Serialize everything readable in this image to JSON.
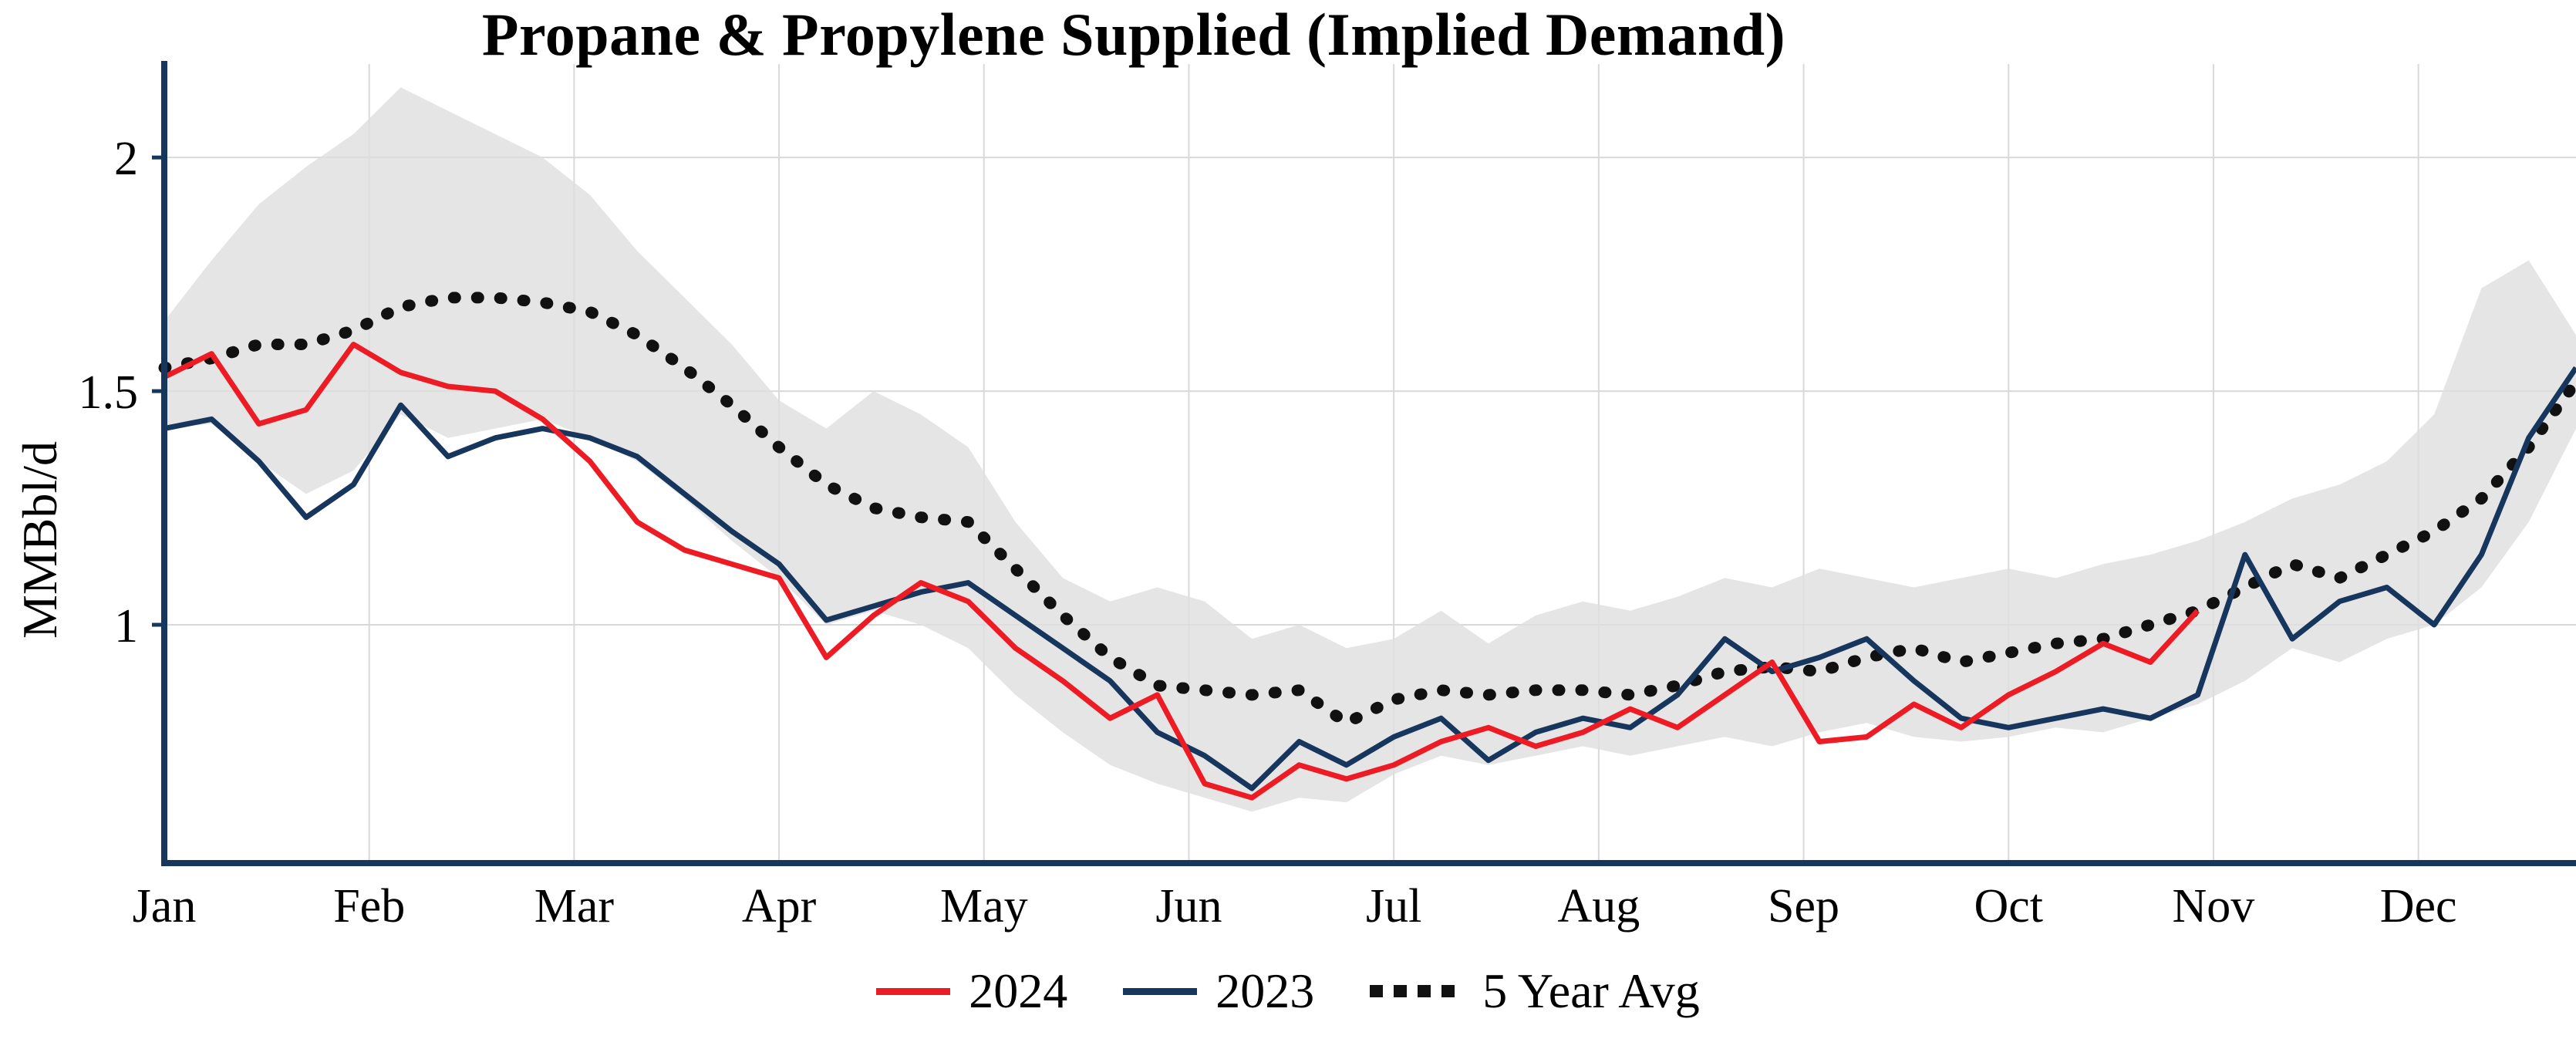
{
  "title": "Propane & Propylene Supplied (Implied Demand)",
  "axes": {
    "y_label": "MMBbl/d",
    "y_ticks": [
      {
        "label": "2",
        "value": 2
      },
      {
        "label": "1.5",
        "value": 1.5
      },
      {
        "label": "1",
        "value": 1
      }
    ]
  },
  "legend": {
    "items": [
      {
        "label": "2024"
      },
      {
        "label": "2023"
      },
      {
        "label": "5 Year Avg"
      }
    ]
  },
  "colors": {
    "red_2024": "#ed1c24",
    "navy_2023": "#17365d",
    "avg_black": "#111111",
    "band_gray": "#dedede",
    "grid_gray": "#d9d9d9",
    "axis_navy": "#17365d"
  },
  "chart_data": {
    "type": "line",
    "title": "Propane & Propylene Supplied (Implied Demand)",
    "xlabel": "",
    "ylabel": "MMBbl/d",
    "x_unit": "week_of_year",
    "months": [
      "Jan",
      "Feb",
      "Mar",
      "Apr",
      "May",
      "Jun",
      "Jul",
      "Aug",
      "Sep",
      "Oct",
      "Nov",
      "Dec"
    ],
    "weeks": 52,
    "ylim": [
      0.49,
      2.2
    ],
    "grid": true,
    "legend_position": "bottom",
    "band": {
      "name": "5 Year Range",
      "color": "#dedede",
      "upper": [
        1.65,
        1.78,
        1.9,
        1.98,
        2.05,
        2.15,
        2.1,
        2.05,
        2.0,
        1.92,
        1.8,
        1.7,
        1.6,
        1.48,
        1.42,
        1.5,
        1.45,
        1.38,
        1.22,
        1.1,
        1.05,
        1.08,
        1.05,
        0.97,
        1.0,
        0.95,
        0.97,
        1.03,
        0.96,
        1.02,
        1.05,
        1.03,
        1.06,
        1.1,
        1.08,
        1.12,
        1.1,
        1.08,
        1.1,
        1.12,
        1.1,
        1.13,
        1.15,
        1.18,
        1.22,
        1.27,
        1.3,
        1.35,
        1.45,
        1.72,
        1.78,
        1.62
      ],
      "lower": [
        1.42,
        1.43,
        1.35,
        1.28,
        1.33,
        1.45,
        1.4,
        1.42,
        1.44,
        1.4,
        1.35,
        1.27,
        1.18,
        1.1,
        1.0,
        1.03,
        1.0,
        0.95,
        0.85,
        0.77,
        0.7,
        0.66,
        0.63,
        0.6,
        0.63,
        0.62,
        0.68,
        0.72,
        0.7,
        0.72,
        0.74,
        0.72,
        0.74,
        0.76,
        0.74,
        0.77,
        0.79,
        0.76,
        0.75,
        0.76,
        0.78,
        0.77,
        0.8,
        0.83,
        0.88,
        0.95,
        0.92,
        0.97,
        1.0,
        1.08,
        1.22,
        1.42
      ]
    },
    "series": [
      {
        "name": "2024",
        "color": "#ed1c24",
        "dash": "solid",
        "start_week": 0,
        "values": [
          1.53,
          1.58,
          1.43,
          1.46,
          1.6,
          1.54,
          1.51,
          1.5,
          1.44,
          1.35,
          1.22,
          1.16,
          1.13,
          1.1,
          0.93,
          1.02,
          1.09,
          1.05,
          0.95,
          0.88,
          0.8,
          0.85,
          0.66,
          0.63,
          0.7,
          0.67,
          0.7,
          0.75,
          0.78,
          0.74,
          0.77,
          0.82,
          0.78,
          0.85,
          0.92,
          0.75,
          0.76,
          0.83,
          0.78,
          0.85,
          0.9,
          0.96,
          0.92,
          1.03
        ]
      },
      {
        "name": "2023",
        "color": "#17365d",
        "dash": "solid",
        "start_week": 0,
        "values": [
          1.42,
          1.44,
          1.35,
          1.23,
          1.3,
          1.47,
          1.36,
          1.4,
          1.42,
          1.4,
          1.36,
          1.28,
          1.2,
          1.13,
          1.01,
          1.04,
          1.07,
          1.09,
          1.02,
          0.95,
          0.88,
          0.77,
          0.72,
          0.65,
          0.75,
          0.7,
          0.76,
          0.8,
          0.71,
          0.77,
          0.8,
          0.78,
          0.85,
          0.97,
          0.9,
          0.93,
          0.97,
          0.88,
          0.8,
          0.78,
          0.8,
          0.82,
          0.8,
          0.85,
          1.15,
          0.97,
          1.05,
          1.08,
          1.0,
          1.15,
          1.4,
          1.55
        ]
      },
      {
        "name": "5 Year Avg",
        "color": "#111111",
        "dash": "dotted",
        "start_week": 0,
        "values": [
          1.55,
          1.57,
          1.6,
          1.6,
          1.63,
          1.68,
          1.7,
          1.7,
          1.69,
          1.67,
          1.62,
          1.55,
          1.47,
          1.38,
          1.3,
          1.25,
          1.23,
          1.22,
          1.12,
          1.02,
          0.93,
          0.87,
          0.86,
          0.85,
          0.86,
          0.79,
          0.84,
          0.86,
          0.85,
          0.86,
          0.86,
          0.85,
          0.87,
          0.9,
          0.91,
          0.9,
          0.93,
          0.95,
          0.92,
          0.94,
          0.96,
          0.97,
          1.0,
          1.03,
          1.08,
          1.13,
          1.1,
          1.15,
          1.2,
          1.27,
          1.38,
          1.52
        ]
      }
    ]
  }
}
